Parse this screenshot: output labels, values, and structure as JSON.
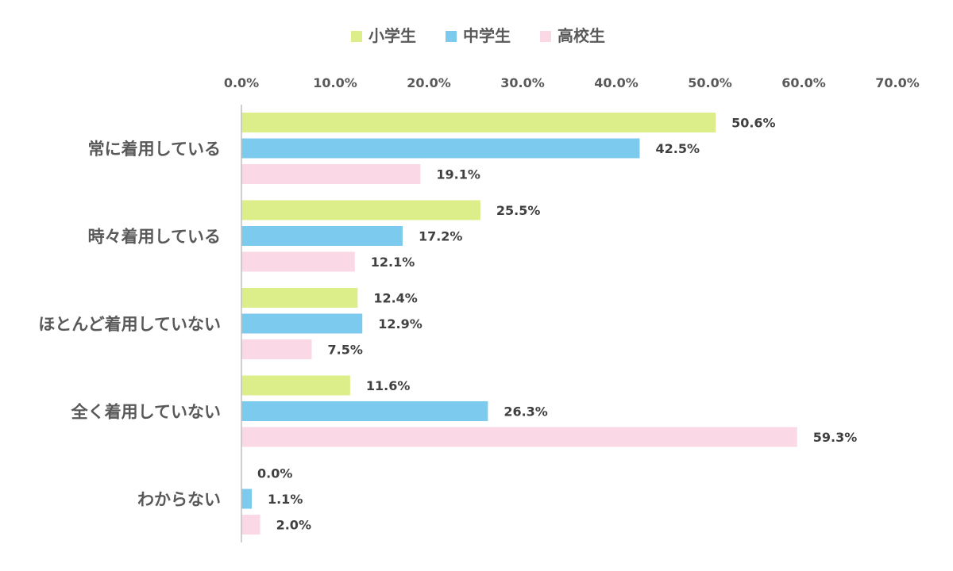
{
  "chart_data": {
    "type": "bar",
    "orientation": "horizontal",
    "categories": [
      "常に着用している",
      "時々着用している",
      "ほとんど着用していない",
      "全く着用していない",
      "わからない"
    ],
    "series": [
      {
        "name": "小学生",
        "color": "#dcee8a",
        "values": [
          50.6,
          25.5,
          12.4,
          11.6,
          0.0
        ]
      },
      {
        "name": "中学生",
        "color": "#7ccaee",
        "values": [
          42.5,
          17.2,
          12.9,
          26.3,
          1.1
        ]
      },
      {
        "name": "高校生",
        "color": "#fad8e6",
        "values": [
          19.1,
          12.1,
          7.5,
          59.3,
          2.0
        ]
      }
    ],
    "value_labels": [
      [
        "50.6%",
        "25.5%",
        "12.4%",
        "11.6%",
        "0.0%"
      ],
      [
        "42.5%",
        "17.2%",
        "12.9%",
        "26.3%",
        "1.1%"
      ],
      [
        "19.1%",
        "12.1%",
        "7.5%",
        "59.3%",
        "2.0%"
      ]
    ],
    "xticks": [
      0,
      10,
      20,
      30,
      40,
      50,
      60,
      70
    ],
    "xtick_labels": [
      "0.0%",
      "10.0%",
      "20.0%",
      "30.0%",
      "40.0%",
      "50.0%",
      "60.0%",
      "70.0%"
    ],
    "xlim": [
      0,
      70
    ],
    "x_axis_position": "top",
    "legend_position": "top",
    "grid": false,
    "title": "",
    "xlabel": "",
    "ylabel": ""
  }
}
